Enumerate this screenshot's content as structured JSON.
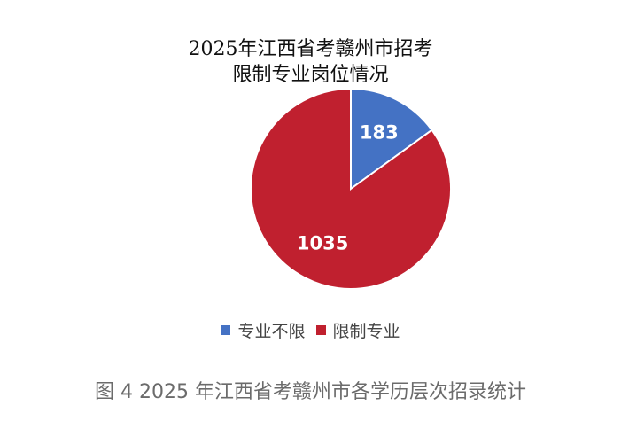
{
  "chart_data": {
    "type": "pie",
    "title": [
      "2025年江西省考赣州市招考",
      "限制专业岗位情况"
    ],
    "categories": [
      "专业不限",
      "限制专业"
    ],
    "values": [
      183,
      1035
    ],
    "colors": [
      "#4472C4",
      "#C0202F"
    ],
    "legend": "bottom"
  },
  "caption": "图 4 2025 年江西省考赣州市各学历层次招录统计"
}
